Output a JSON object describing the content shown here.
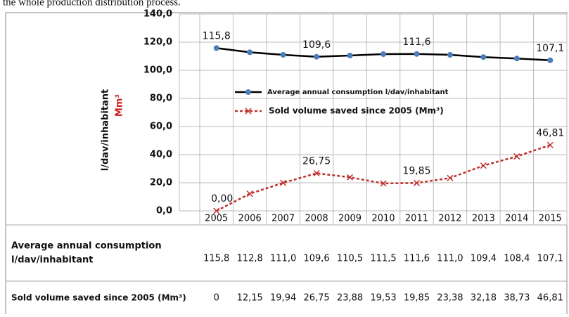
{
  "caption": "the whole production distribution process.",
  "chart_data": {
    "type": "line",
    "y_label": "l/dav/inhabitant",
    "y_label_2": "Mm³",
    "categories": [
      "2005",
      "2006",
      "2007",
      "2008",
      "2009",
      "2010",
      "2011",
      "2012",
      "2013",
      "2014",
      "2015"
    ],
    "ylim": [
      0,
      140
    ],
    "yticks": [
      {
        "value": 0,
        "label": "0,0"
      },
      {
        "value": 20,
        "label": "20,0"
      },
      {
        "value": 40,
        "label": "40,0"
      },
      {
        "value": 60,
        "label": "60,0"
      },
      {
        "value": 80,
        "label": "80,0"
      },
      {
        "value": 100,
        "label": "100,0"
      },
      {
        "value": 120,
        "label": "120,0"
      },
      {
        "value": 140,
        "label": "140,0"
      }
    ],
    "grid": true,
    "series": [
      {
        "name": "Average annual consumption l/dav/inhabitant",
        "color": "#000000",
        "marker_color": "#4a7ebb",
        "values": [
          115.8,
          112.8,
          111.0,
          109.6,
          110.5,
          111.5,
          111.6,
          111.0,
          109.4,
          108.4,
          107.1
        ],
        "value_labels": [
          "115,8",
          null,
          null,
          "109,6",
          null,
          null,
          "111,6",
          null,
          null,
          null,
          "107,1"
        ]
      },
      {
        "name": "Sold volume saved since 2005 (Mm³)",
        "color": "#c0302a",
        "marker_color": "#c0302a",
        "values": [
          0,
          12.15,
          19.94,
          26.75,
          23.88,
          19.53,
          19.85,
          23.38,
          32.18,
          38.73,
          46.81
        ],
        "value_labels": [
          "0,00",
          null,
          null,
          "26,75",
          null,
          null,
          "19,85",
          null,
          null,
          null,
          "46,81"
        ]
      }
    ],
    "table": {
      "rows": [
        {
          "label": [
            "Average annual consumption",
            "l/dav/inhabitant"
          ],
          "cells": [
            "115,8",
            "112,8",
            "111,0",
            "109,6",
            "110,5",
            "111,5",
            "111,6",
            "111,0",
            "109,4",
            "108,4",
            "107,1"
          ]
        },
        {
          "label": [
            "Sold volume saved since 2005 (Mm³)"
          ],
          "cells": [
            "0",
            "12,15",
            "19,94",
            "26,75",
            "23,88",
            "19,53",
            "19,85",
            "23,38",
            "32,18",
            "38,73",
            "46,81"
          ]
        }
      ]
    }
  }
}
